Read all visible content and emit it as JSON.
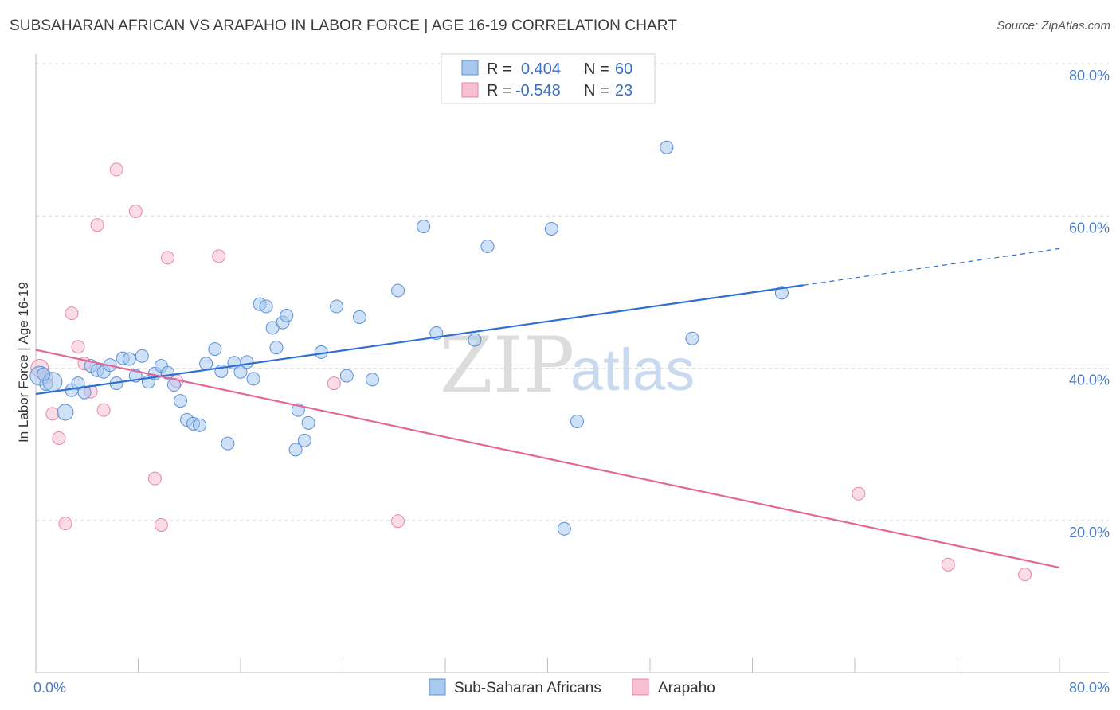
{
  "title": "SUBSAHARAN AFRICAN VS ARAPAHO IN LABOR FORCE | AGE 16-19 CORRELATION CHART",
  "source": "Source: ZipAtlas.com",
  "watermark": {
    "zip": "ZIP",
    "atlas": "atlas"
  },
  "legend_box": {
    "rows": [
      {
        "r_label": "R =",
        "r_value": "0.404",
        "n_label": "N =",
        "n_value": "60"
      },
      {
        "r_label": "R =",
        "r_value": "-0.548",
        "n_label": "N =",
        "n_value": "23"
      }
    ]
  },
  "bottom_legend": [
    "Sub-Saharan Africans",
    "Arapaho"
  ],
  "colors": {
    "blue_fill": "#a8c8ee",
    "blue_stroke": "#5b8fd6",
    "blue_line": "#2f6fd1",
    "pink_fill": "#f6bfd2",
    "pink_stroke": "#e985a8",
    "pink_line": "#e2679a",
    "grid": "#d9d9d9",
    "axis": "#bdbdbd"
  },
  "chart_data": {
    "type": "scatter",
    "title": "SUBSAHARAN AFRICAN VS ARAPAHO IN LABOR FORCE | AGE 16-19 CORRELATION CHART",
    "xlabel": "",
    "ylabel": "In Labor Force | Age 16-19",
    "xlim": [
      0,
      80
    ],
    "ylim": [
      0,
      80
    ],
    "x_tick_labels": [
      "0.0%",
      "80.0%"
    ],
    "y_tick_labels": [
      "20.0%",
      "40.0%",
      "60.0%",
      "80.0%"
    ],
    "y_ticks": [
      20,
      40,
      60,
      80
    ],
    "x_ticks": [
      0,
      8,
      16,
      24,
      32,
      40,
      48,
      56,
      64,
      72,
      80
    ],
    "grid": true,
    "legend_position": "top-center",
    "series": [
      {
        "name": "Sub-Saharan Africans",
        "R": 0.404,
        "N": 60,
        "trend": {
          "x0": 0,
          "y0": 36.6,
          "x1": 60,
          "y1": 50.9,
          "dashed_to_x": 80,
          "dashed_to_y": 55.7
        },
        "points": [
          [
            0.3,
            39.0
          ],
          [
            0.8,
            37.9
          ],
          [
            1.3,
            38.2
          ],
          [
            0.6,
            39.2
          ],
          [
            2.3,
            34.2
          ],
          [
            2.8,
            37.1
          ],
          [
            3.3,
            38.0
          ],
          [
            3.8,
            36.8
          ],
          [
            4.3,
            40.3
          ],
          [
            4.8,
            39.7
          ],
          [
            5.3,
            39.5
          ],
          [
            5.8,
            40.4
          ],
          [
            6.3,
            38.0
          ],
          [
            6.8,
            41.3
          ],
          [
            7.3,
            41.2
          ],
          [
            7.8,
            39.0
          ],
          [
            8.3,
            41.6
          ],
          [
            8.8,
            38.2
          ],
          [
            9.3,
            39.3
          ],
          [
            9.8,
            40.3
          ],
          [
            10.3,
            39.4
          ],
          [
            10.8,
            37.8
          ],
          [
            11.3,
            35.7
          ],
          [
            11.8,
            33.2
          ],
          [
            12.3,
            32.7
          ],
          [
            12.8,
            32.5
          ],
          [
            13.3,
            40.6
          ],
          [
            14.0,
            42.5
          ],
          [
            14.5,
            39.6
          ],
          [
            15.0,
            30.1
          ],
          [
            15.5,
            40.7
          ],
          [
            16.0,
            39.5
          ],
          [
            16.5,
            40.8
          ],
          [
            17.0,
            38.6
          ],
          [
            17.5,
            48.4
          ],
          [
            18.0,
            48.1
          ],
          [
            18.5,
            45.3
          ],
          [
            18.8,
            42.7
          ],
          [
            19.3,
            46.0
          ],
          [
            19.6,
            46.9
          ],
          [
            20.3,
            29.3
          ],
          [
            20.5,
            34.5
          ],
          [
            21.0,
            30.5
          ],
          [
            21.3,
            32.8
          ],
          [
            22.3,
            42.1
          ],
          [
            23.5,
            48.1
          ],
          [
            24.3,
            39.0
          ],
          [
            25.3,
            46.7
          ],
          [
            26.3,
            38.5
          ],
          [
            28.3,
            50.2
          ],
          [
            30.3,
            58.6
          ],
          [
            31.3,
            44.6
          ],
          [
            34.3,
            43.7
          ],
          [
            35.3,
            56.0
          ],
          [
            40.3,
            58.3
          ],
          [
            41.3,
            18.9
          ],
          [
            42.3,
            33.0
          ],
          [
            49.3,
            69.0
          ],
          [
            51.3,
            43.9
          ],
          [
            58.3,
            49.9
          ]
        ]
      },
      {
        "name": "Arapaho",
        "R": -0.548,
        "N": 23,
        "trend": {
          "x0": 0,
          "y0": 42.4,
          "x1": 80,
          "y1": 13.8
        },
        "points": [
          [
            0.3,
            40.0
          ],
          [
            0.8,
            38.8
          ],
          [
            1.3,
            34.0
          ],
          [
            1.8,
            30.8
          ],
          [
            2.3,
            19.6
          ],
          [
            2.8,
            47.2
          ],
          [
            3.3,
            42.8
          ],
          [
            3.8,
            40.6
          ],
          [
            4.3,
            36.9
          ],
          [
            4.8,
            58.8
          ],
          [
            5.3,
            34.5
          ],
          [
            6.3,
            66.1
          ],
          [
            7.8,
            60.6
          ],
          [
            9.3,
            25.5
          ],
          [
            9.8,
            19.4
          ],
          [
            10.3,
            54.5
          ],
          [
            11.0,
            38.3
          ],
          [
            14.3,
            54.7
          ],
          [
            23.3,
            38.0
          ],
          [
            28.3,
            19.9
          ],
          [
            64.3,
            23.5
          ],
          [
            71.3,
            14.2
          ],
          [
            77.3,
            12.9
          ]
        ]
      }
    ]
  }
}
